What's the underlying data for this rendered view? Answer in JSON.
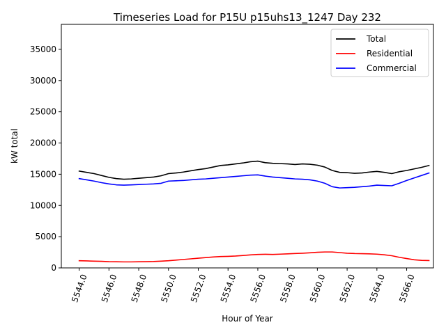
{
  "chart_data": {
    "type": "line",
    "title": "Timeseries Load for P15U p15uhs13_1247  Day 232",
    "xlabel": "Hour of Year",
    "ylabel": "kW total",
    "xlim": [
      5542.8,
      5567.8
    ],
    "ylim": [
      0,
      39000
    ],
    "xticks": [
      5544,
      5546,
      5548,
      5550,
      5552,
      5554,
      5556,
      5558,
      5560,
      5562,
      5564,
      5566
    ],
    "xtick_labels": [
      "5544.0",
      "5546.0",
      "5548.0",
      "5550.0",
      "5552.0",
      "5554.0",
      "5556.0",
      "5558.0",
      "5560.0",
      "5562.0",
      "5564.0",
      "5566.0"
    ],
    "yticks": [
      0,
      5000,
      10000,
      15000,
      20000,
      25000,
      30000,
      35000
    ],
    "ytick_labels": [
      "0",
      "5000",
      "10000",
      "15000",
      "20000",
      "25000",
      "30000",
      "35000"
    ],
    "legend_position": "top-right",
    "x": [
      5544,
      5544.5,
      5545,
      5545.5,
      5546,
      5546.5,
      5547,
      5547.5,
      5548,
      5548.5,
      5549,
      5549.5,
      5550,
      5550.5,
      5551,
      5551.5,
      5552,
      5552.5,
      5553,
      5553.5,
      5554,
      5554.5,
      5555,
      5555.5,
      5556,
      5556.5,
      5557,
      5557.5,
      5558,
      5558.5,
      5559,
      5559.5,
      5560,
      5560.5,
      5561,
      5561.5,
      5562,
      5562.5,
      5563,
      5563.5,
      5564,
      5564.5,
      5565,
      5565.5,
      5566,
      5566.5,
      5567,
      5567.5
    ],
    "series": [
      {
        "name": "Total",
        "color": "#000000",
        "values": [
          15500,
          15300,
          15100,
          14800,
          14500,
          14300,
          14200,
          14250,
          14350,
          14450,
          14550,
          14750,
          15100,
          15200,
          15350,
          15550,
          15750,
          15900,
          16150,
          16400,
          16500,
          16650,
          16800,
          17000,
          17100,
          16850,
          16750,
          16700,
          16650,
          16550,
          16650,
          16600,
          16450,
          16150,
          15600,
          15300,
          15250,
          15150,
          15200,
          15350,
          15450,
          15300,
          15100,
          15400,
          15600,
          15850,
          16100,
          16400
        ]
      },
      {
        "name": "Residential",
        "color": "#ff0000",
        "values": [
          1150,
          1120,
          1080,
          1050,
          1000,
          980,
          960,
          960,
          980,
          1000,
          1020,
          1080,
          1150,
          1250,
          1350,
          1450,
          1550,
          1650,
          1750,
          1820,
          1850,
          1900,
          1980,
          2080,
          2150,
          2180,
          2150,
          2200,
          2250,
          2300,
          2350,
          2420,
          2500,
          2550,
          2550,
          2450,
          2350,
          2300,
          2280,
          2250,
          2200,
          2100,
          1950,
          1700,
          1500,
          1300,
          1200,
          1180
        ]
      },
      {
        "name": "Commercial",
        "color": "#0000ff",
        "values": [
          14300,
          14100,
          13900,
          13650,
          13450,
          13300,
          13250,
          13300,
          13350,
          13400,
          13450,
          13550,
          13900,
          13950,
          14000,
          14100,
          14200,
          14250,
          14350,
          14450,
          14550,
          14650,
          14750,
          14850,
          14900,
          14700,
          14550,
          14450,
          14350,
          14250,
          14200,
          14100,
          13900,
          13550,
          13000,
          12800,
          12850,
          12900,
          13000,
          13100,
          13250,
          13200,
          13150,
          13550,
          14000,
          14400,
          14800,
          15200
        ]
      }
    ]
  }
}
